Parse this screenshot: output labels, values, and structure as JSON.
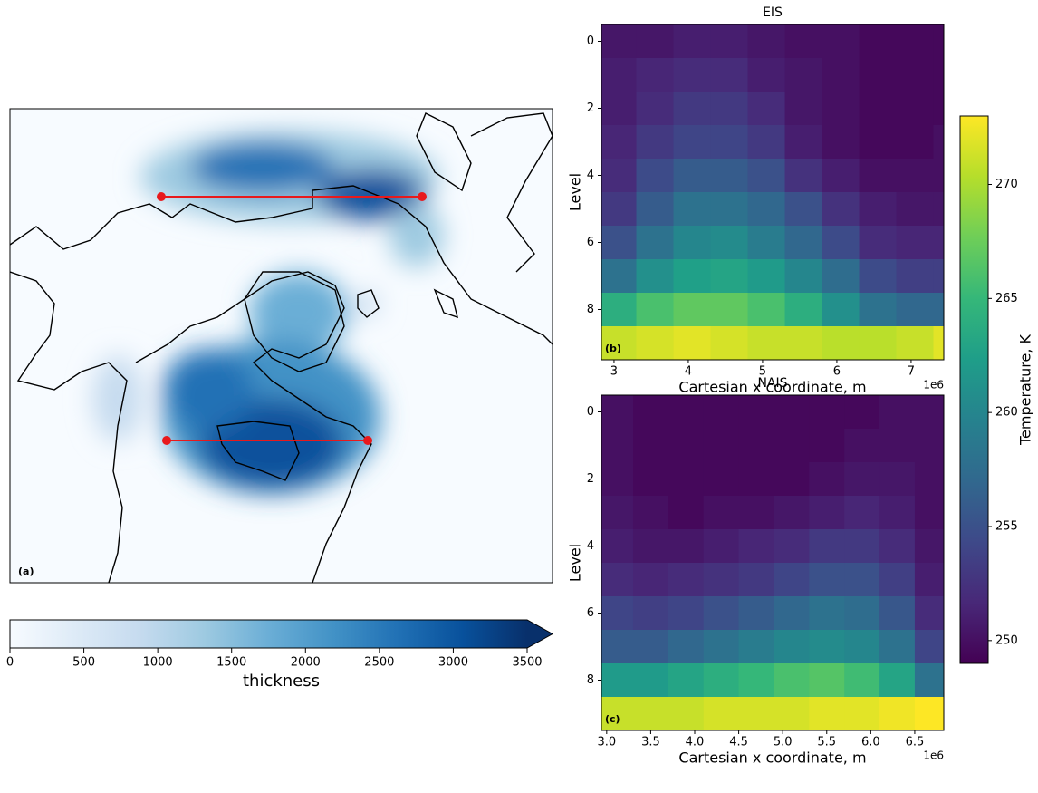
{
  "chart_data": [
    {
      "type": "map",
      "panel_label": "(a)",
      "colorbar": {
        "label": "thickness",
        "colormap": "Blues",
        "lim": [
          0,
          3500
        ],
        "ticks": [
          0,
          500,
          1000,
          1500,
          2000,
          2500,
          3000,
          3500
        ],
        "extend": "max"
      }
    },
    {
      "type": "heatmap",
      "title": "EIS",
      "panel_label": "(b)",
      "xlabel": "Cartesian x coordinate, m",
      "ylabel": "Level",
      "x_offset_label": "1e6",
      "colormap": "viridis",
      "x": [
        3.05,
        3.55,
        4.05,
        4.55,
        5.05,
        5.55,
        6.05,
        6.55,
        7.05,
        7.55
      ],
      "y": [
        0,
        1,
        2,
        3,
        4,
        5,
        6,
        7,
        8,
        9
      ],
      "values": [
        [
          250.5,
          250.5,
          251,
          251,
          250.5,
          250,
          250,
          249.5,
          249.5,
          249.5
        ],
        [
          251,
          251.5,
          252,
          252,
          251,
          250.5,
          250,
          249.5,
          249.5,
          249.5
        ],
        [
          251,
          252,
          253,
          253,
          252,
          250.5,
          250,
          249.5,
          249.5,
          249.5
        ],
        [
          251.5,
          253,
          254,
          254,
          253,
          251,
          250,
          249.5,
          249.5,
          250
        ],
        [
          252,
          254.5,
          256,
          256,
          255,
          252.5,
          251,
          250,
          250,
          250
        ],
        [
          253,
          256,
          258,
          258,
          257,
          255,
          252.5,
          251,
          250.5,
          250.5
        ],
        [
          255,
          258,
          260,
          260.5,
          259,
          257,
          254.5,
          252,
          251.5,
          251.5
        ],
        [
          258,
          261,
          262.5,
          263,
          262,
          260,
          257.5,
          254.5,
          253.5,
          253.5
        ],
        [
          264,
          266,
          267,
          267,
          266,
          264,
          261,
          258,
          257,
          257
        ],
        [
          271,
          271.5,
          272,
          271.5,
          271,
          271,
          270.5,
          270.5,
          271,
          272
        ]
      ],
      "xlim": [
        2.83,
        7.44
      ],
      "xticks": [
        3,
        4,
        5,
        6,
        7
      ],
      "ylim": [
        9.5,
        -0.5
      ],
      "yticks": [
        0,
        2,
        4,
        6,
        8
      ]
    },
    {
      "type": "heatmap",
      "title": "NAIS",
      "panel_label": "(c)",
      "xlabel": "Cartesian x coordinate, m",
      "ylabel": "Level",
      "x_offset_label": "1e6",
      "colormap": "viridis",
      "x": [
        3.1,
        3.5,
        3.9,
        4.3,
        4.7,
        5.1,
        5.5,
        5.9,
        6.3,
        6.7
      ],
      "y": [
        0,
        1,
        2,
        3,
        4,
        5,
        6,
        7,
        8,
        9
      ],
      "values": [
        [
          250,
          249.5,
          249.5,
          249.5,
          249.5,
          249.5,
          249.5,
          249.5,
          250,
          250
        ],
        [
          250,
          249.5,
          249.5,
          249.5,
          249.5,
          249.5,
          249.5,
          250,
          250,
          250
        ],
        [
          250,
          249.5,
          249.5,
          249.5,
          249.5,
          249.5,
          250,
          250.5,
          250.5,
          250
        ],
        [
          250.5,
          250,
          249.5,
          250,
          250,
          250.5,
          251,
          251.5,
          251,
          250
        ],
        [
          251,
          250.5,
          250.5,
          251,
          251.5,
          252,
          253,
          253,
          252,
          250.5
        ],
        [
          252,
          251.5,
          252,
          252.5,
          253,
          254,
          255,
          255,
          253.5,
          251
        ],
        [
          254,
          253.5,
          254,
          255,
          256,
          257,
          258,
          257.5,
          255.5,
          252
        ],
        [
          256,
          256,
          257,
          258,
          259,
          260,
          260.5,
          260,
          258,
          254
        ],
        [
          262,
          262,
          263,
          264,
          265,
          266,
          266.5,
          265.5,
          263,
          258
        ],
        [
          271,
          271,
          271,
          271.5,
          271.5,
          271.5,
          272,
          272,
          272.5,
          273
        ]
      ],
      "xlim": [
        2.94,
        6.83
      ],
      "xticks": [
        {
          "value": 3,
          "label": "3.0"
        },
        3.5,
        {
          "value": 4,
          "label": "4.0"
        },
        4.5,
        {
          "value": 5,
          "label": "5.0"
        },
        5.5,
        {
          "value": 6,
          "label": "6.0"
        },
        6.5
      ],
      "ylim": [
        9.5,
        -0.5
      ],
      "yticks": [
        0,
        2,
        4,
        6,
        8
      ]
    },
    {
      "type": "colorbar",
      "label": "Temperature, K",
      "colormap": "viridis",
      "lim": [
        249,
        273
      ],
      "ticks": [
        250,
        255,
        260,
        265,
        270
      ]
    }
  ]
}
